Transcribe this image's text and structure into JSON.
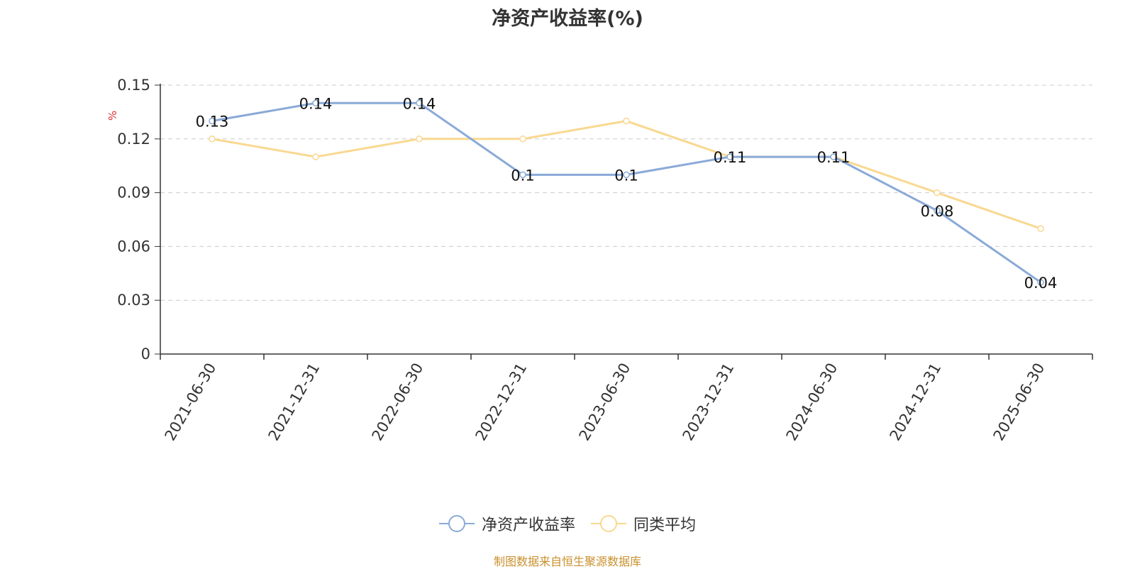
{
  "chart_data": {
    "type": "line",
    "title": "净资产收益率(%)",
    "ylabel": "%",
    "xlabel": "",
    "ylim": [
      0,
      0.15
    ],
    "yticks": [
      "0",
      "0.03",
      "0.06",
      "0.09",
      "0.12",
      "0.15"
    ],
    "categories": [
      "2021-06-30",
      "2021-12-31",
      "2022-06-30",
      "2022-12-31",
      "2023-06-30",
      "2023-12-31",
      "2024-06-30",
      "2024-12-31",
      "2025-06-30"
    ],
    "series": [
      {
        "name": "净资产收益率",
        "color": "#8aaad8",
        "values": [
          0.13,
          0.14,
          0.14,
          0.1,
          0.1,
          0.11,
          0.11,
          0.08,
          0.04
        ],
        "labels": [
          "0.13",
          "0.14",
          "0.14",
          "0.1",
          "0.1",
          "0.11",
          "0.11",
          "0.08",
          "0.04"
        ]
      },
      {
        "name": "同类平均",
        "color": "#f9d890",
        "values": [
          0.12,
          0.11,
          0.12,
          0.12,
          0.13,
          0.11,
          0.11,
          0.09,
          0.07
        ]
      }
    ],
    "grid": true,
    "legend_position": "bottom"
  },
  "footer": {
    "source": "制图数据来自恒生聚源数据库"
  }
}
